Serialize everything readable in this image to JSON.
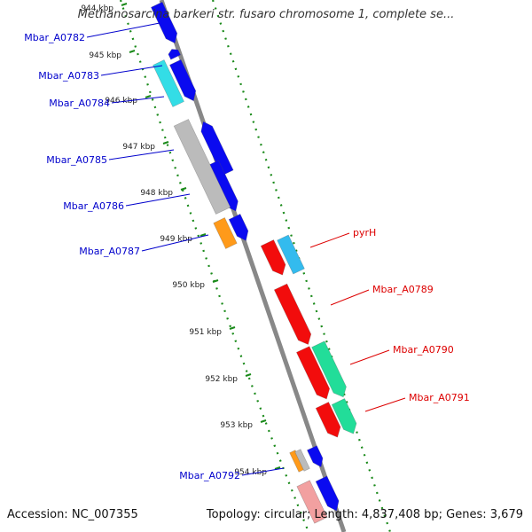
{
  "title": "Methanosarcina barkeri str. fusaro chromosome 1, complete se...",
  "footer": {
    "accession": "Accession: NC_007355",
    "topology": "Topology: circular; Length: 4,837,408 bp; Genes: 3,679"
  },
  "colors": {
    "backbone": "#888888",
    "tick_dots": "#1a8a1a",
    "left_gene_label": "#0000cc",
    "right_gene_label": "#dd0000",
    "tick_label": "#222222"
  },
  "kbp_ticks": [
    "944 kbp",
    "945 kbp",
    "946 kbp",
    "947 kbp",
    "948 kbp",
    "949 kbp",
    "950 kbp",
    "951 kbp",
    "952 kbp",
    "953 kbp",
    "954 kbp"
  ],
  "gene_labels_left": [
    "Mbar_A0782",
    "Mbar_A0783",
    "Mbar_A0784",
    "Mbar_A0785",
    "Mbar_A0786",
    "Mbar_A0787",
    "Mbar_A0792"
  ],
  "gene_labels_right": [
    "pyrH",
    "Mbar_A0789",
    "Mbar_A0790",
    "Mbar_A0791"
  ],
  "feature_colors": [
    "blue",
    "cyan",
    "gray",
    "orange",
    "red",
    "sky-blue",
    "spring-green",
    "salmon"
  ]
}
